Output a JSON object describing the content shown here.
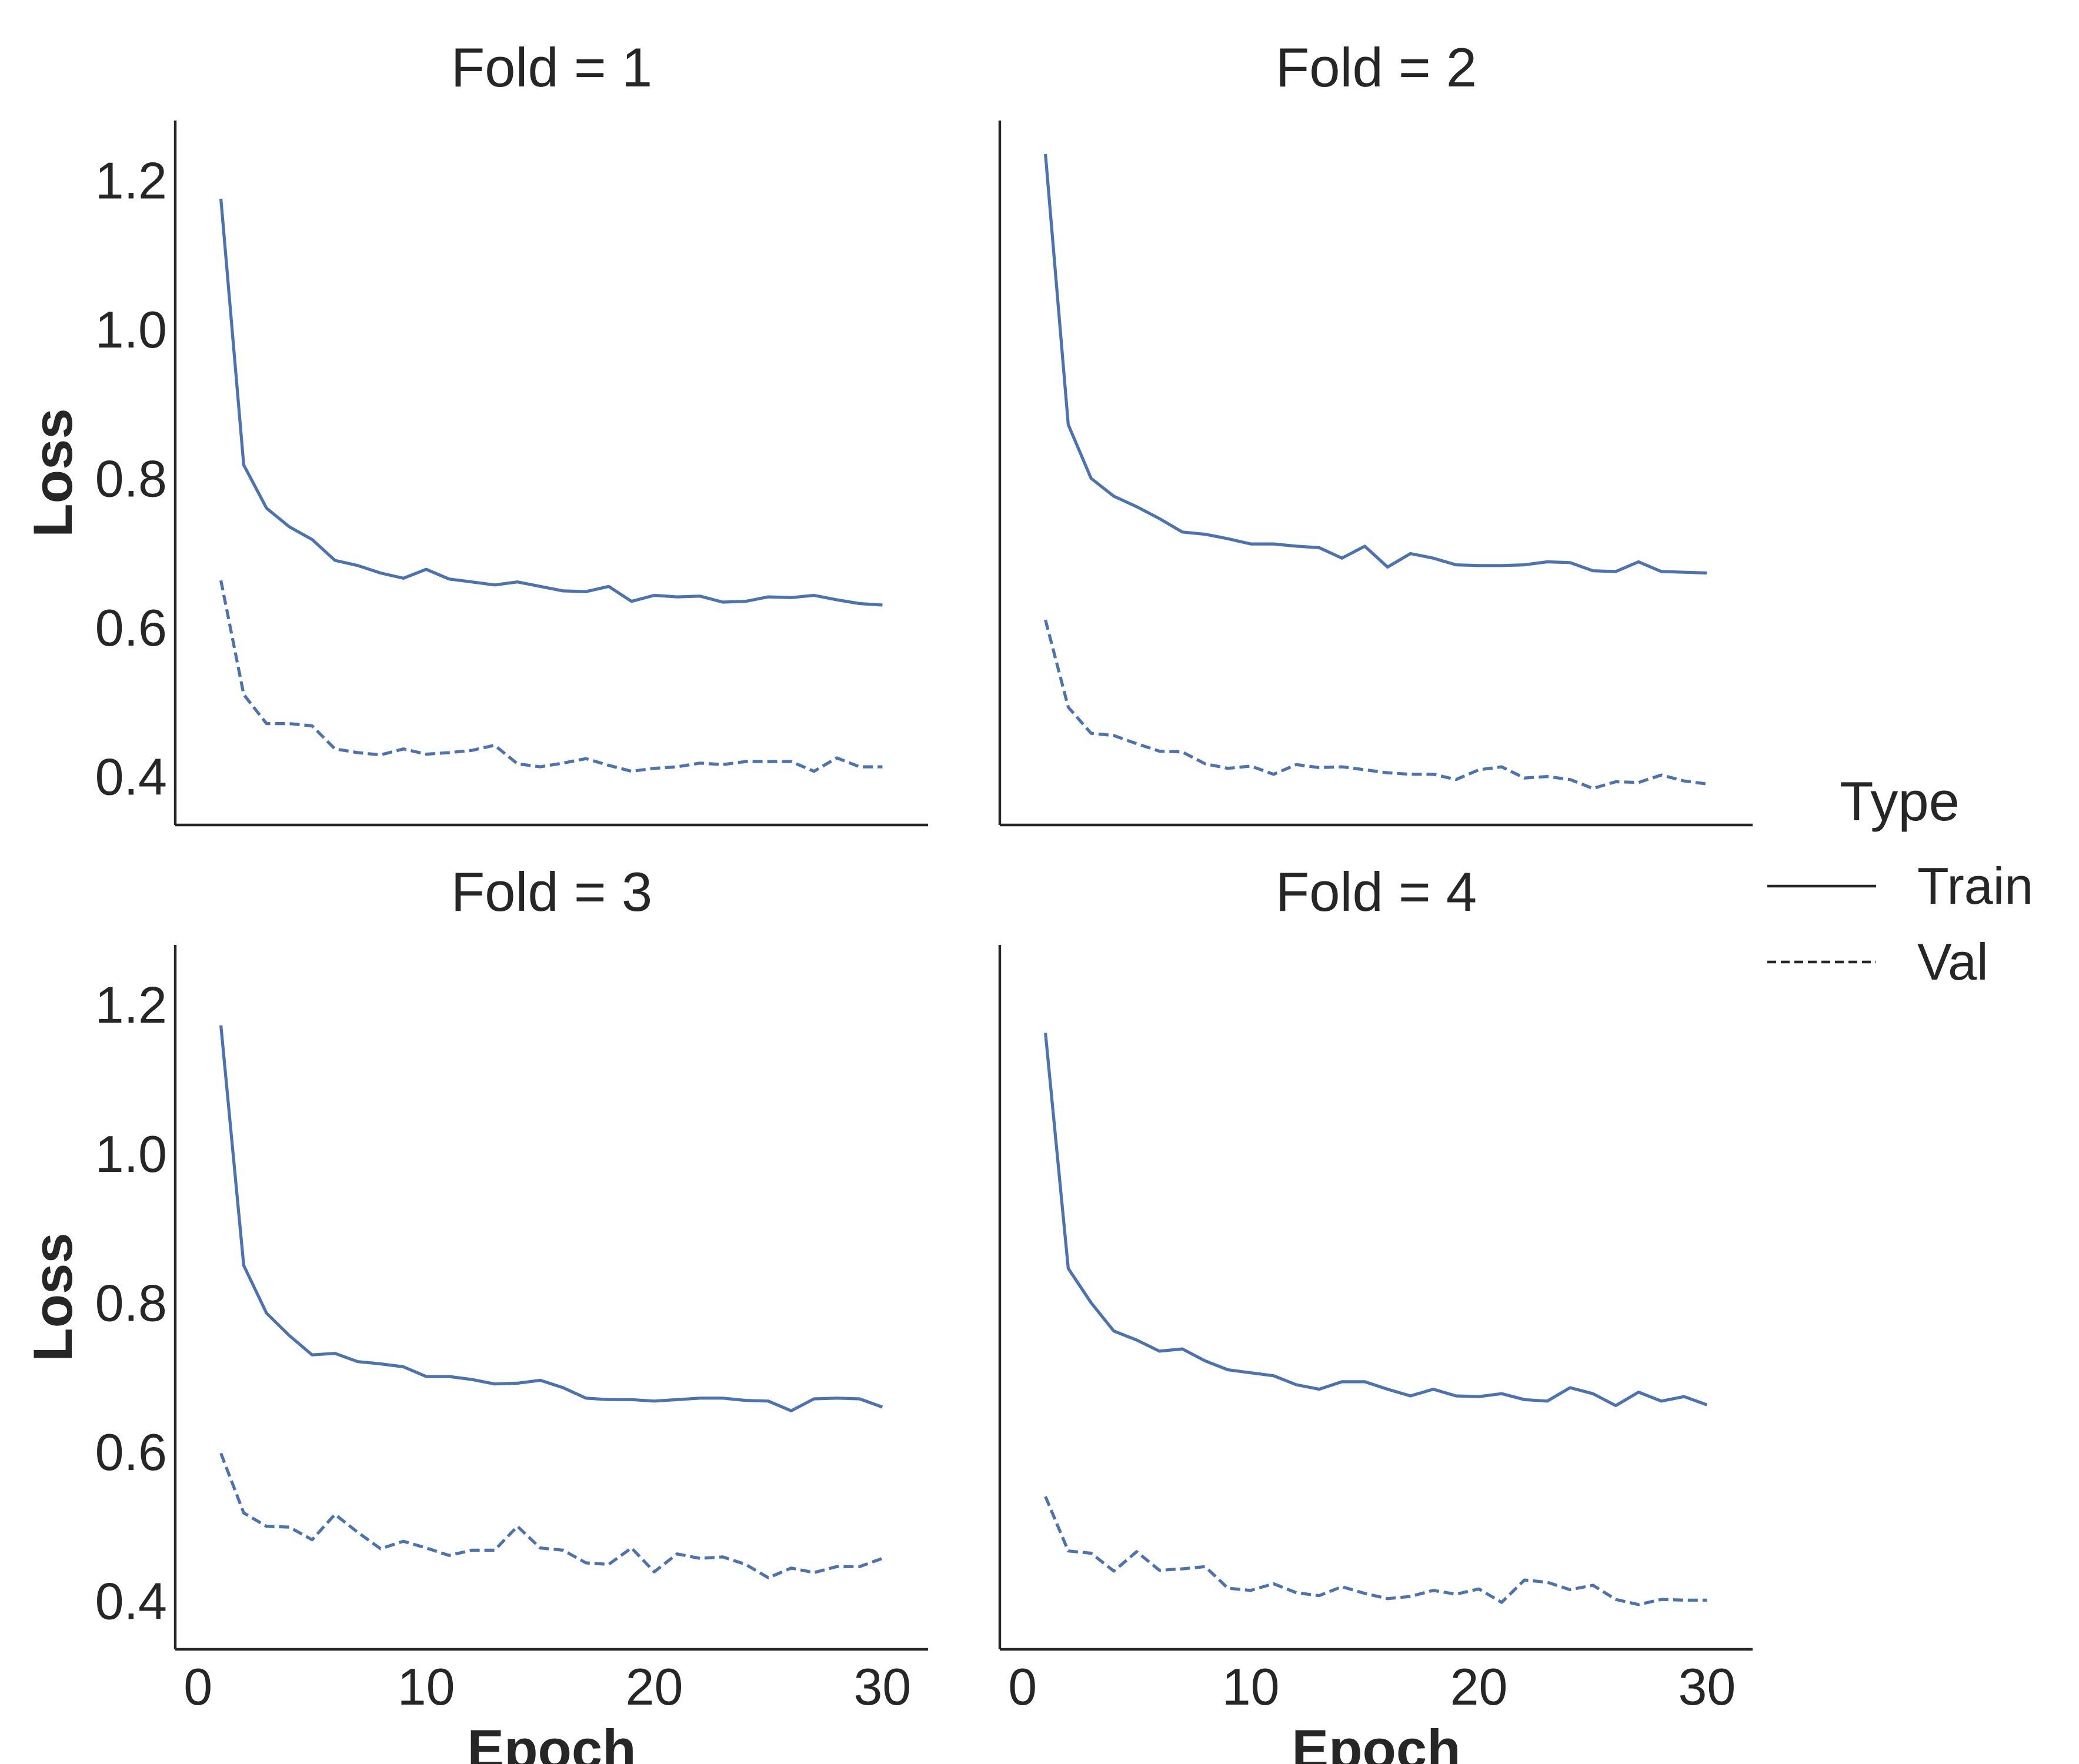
{
  "chart_data": {
    "type": "line",
    "x_label": "Epoch",
    "y_label": "Loss",
    "xlim": [
      -1,
      32
    ],
    "ylim": [
      0.335,
      1.28
    ],
    "x_ticks": [
      "0",
      "10",
      "20",
      "30"
    ],
    "y_ticks": [
      "0.4",
      "0.6",
      "0.8",
      "1.0",
      "1.2"
    ],
    "grid": false,
    "legend": {
      "title": "Type",
      "position": "right",
      "entries": [
        {
          "label": "Train",
          "style": "solid"
        },
        {
          "label": "Val",
          "style": "dashed"
        }
      ]
    },
    "line_color": "#4c72b0",
    "axis_color": "#262626",
    "x": [
      1,
      2,
      3,
      4,
      5,
      6,
      7,
      8,
      9,
      10,
      11,
      12,
      13,
      14,
      15,
      16,
      17,
      18,
      19,
      20,
      21,
      22,
      23,
      24,
      25,
      26,
      27,
      28,
      29,
      30
    ],
    "panels": [
      {
        "title": "Fold = 1",
        "series": [
          {
            "name": "Train",
            "style": "solid",
            "values": [
              1.175,
              0.818,
              0.76,
              0.735,
              0.718,
              0.69,
              0.683,
              0.673,
              0.666,
              0.678,
              0.665,
              0.661,
              0.657,
              0.661,
              0.655,
              0.649,
              0.648,
              0.655,
              0.635,
              0.643,
              0.641,
              0.642,
              0.634,
              0.635,
              0.641,
              0.64,
              0.643,
              0.637,
              0.632,
              0.63
            ]
          },
          {
            "name": "Val",
            "style": "dashed",
            "values": [
              0.663,
              0.51,
              0.471,
              0.471,
              0.468,
              0.437,
              0.432,
              0.429,
              0.437,
              0.43,
              0.432,
              0.435,
              0.442,
              0.417,
              0.413,
              0.418,
              0.424,
              0.415,
              0.407,
              0.411,
              0.413,
              0.418,
              0.416,
              0.42,
              0.42,
              0.42,
              0.407,
              0.425,
              0.413,
              0.413
            ]
          }
        ]
      },
      {
        "title": "Fold = 2",
        "series": [
          {
            "name": "Train",
            "style": "solid",
            "values": [
              1.235,
              0.872,
              0.8,
              0.776,
              0.762,
              0.746,
              0.728,
              0.725,
              0.719,
              0.712,
              0.712,
              0.709,
              0.707,
              0.693,
              0.709,
              0.681,
              0.699,
              0.693,
              0.684,
              0.683,
              0.683,
              0.684,
              0.688,
              0.687,
              0.676,
              0.675,
              0.688,
              0.675,
              0.674,
              0.673
            ]
          },
          {
            "name": "Val",
            "style": "dashed",
            "values": [
              0.61,
              0.493,
              0.458,
              0.455,
              0.444,
              0.434,
              0.433,
              0.417,
              0.411,
              0.414,
              0.403,
              0.416,
              0.412,
              0.413,
              0.409,
              0.405,
              0.403,
              0.403,
              0.396,
              0.409,
              0.413,
              0.398,
              0.4,
              0.396,
              0.384,
              0.393,
              0.392,
              0.402,
              0.394,
              0.39
            ]
          }
        ]
      },
      {
        "title": "Fold = 3",
        "series": [
          {
            "name": "Train",
            "style": "solid",
            "values": [
              1.172,
              0.85,
              0.786,
              0.756,
              0.73,
              0.732,
              0.721,
              0.718,
              0.714,
              0.701,
              0.701,
              0.697,
              0.691,
              0.692,
              0.696,
              0.686,
              0.672,
              0.67,
              0.67,
              0.668,
              0.67,
              0.672,
              0.672,
              0.669,
              0.668,
              0.655,
              0.671,
              0.672,
              0.671,
              0.66
            ]
          },
          {
            "name": "Val",
            "style": "dashed",
            "values": [
              0.598,
              0.518,
              0.5,
              0.499,
              0.482,
              0.516,
              0.492,
              0.47,
              0.48,
              0.471,
              0.461,
              0.468,
              0.468,
              0.5,
              0.471,
              0.468,
              0.451,
              0.449,
              0.471,
              0.439,
              0.463,
              0.457,
              0.459,
              0.449,
              0.431,
              0.444,
              0.438,
              0.446,
              0.446,
              0.457
            ]
          }
        ]
      },
      {
        "title": "Fold = 4",
        "series": [
          {
            "name": "Train",
            "style": "solid",
            "values": [
              1.162,
              0.846,
              0.8,
              0.762,
              0.75,
              0.735,
              0.738,
              0.722,
              0.71,
              0.706,
              0.702,
              0.69,
              0.684,
              0.694,
              0.694,
              0.684,
              0.675,
              0.684,
              0.675,
              0.674,
              0.678,
              0.67,
              0.668,
              0.686,
              0.678,
              0.662,
              0.68,
              0.668,
              0.674,
              0.663
            ]
          },
          {
            "name": "Val",
            "style": "dashed",
            "values": [
              0.54,
              0.467,
              0.464,
              0.44,
              0.466,
              0.441,
              0.443,
              0.446,
              0.417,
              0.414,
              0.423,
              0.411,
              0.407,
              0.419,
              0.41,
              0.403,
              0.406,
              0.414,
              0.409,
              0.416,
              0.398,
              0.428,
              0.425,
              0.415,
              0.421,
              0.402,
              0.395,
              0.402,
              0.401,
              0.401
            ]
          }
        ]
      }
    ]
  }
}
